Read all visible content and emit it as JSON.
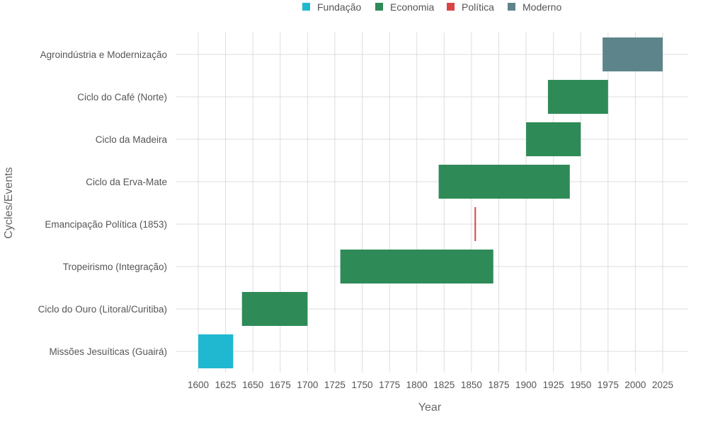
{
  "chart_data": {
    "type": "bar",
    "orientation": "horizontal-range",
    "xlabel": "Year",
    "ylabel": "Cycles/Events",
    "xlim": [
      1583,
      2050
    ],
    "xticks": [
      1600,
      1625,
      1650,
      1675,
      1700,
      1725,
      1750,
      1775,
      1800,
      1825,
      1850,
      1875,
      1900,
      1925,
      1950,
      1975,
      2000,
      2025
    ],
    "grid": true,
    "legend_position": "top",
    "legend": [
      {
        "name": "Fundação",
        "color": "#1fb8d0"
      },
      {
        "name": "Economia",
        "color": "#2e8b57"
      },
      {
        "name": "Política",
        "color": "#d94444"
      },
      {
        "name": "Moderno",
        "color": "#5e848b"
      }
    ],
    "categories": [
      "Agroindústria e Modernização",
      "Ciclo do Café (Norte)",
      "Ciclo da Madeira",
      "Ciclo da Erva-Mate",
      "Emancipação Política (1853)",
      "Tropeirismo (Integração)",
      "Ciclo do Ouro (Litoral/Curitiba)",
      "Missões Jesuíticas (Guairá)"
    ],
    "bars": [
      {
        "label": "Agroindústria e Modernização",
        "start": 1970,
        "end": 2025,
        "group": "Moderno"
      },
      {
        "label": "Ciclo do Café (Norte)",
        "start": 1920,
        "end": 1975,
        "group": "Economia"
      },
      {
        "label": "Ciclo da Madeira",
        "start": 1900,
        "end": 1950,
        "group": "Economia"
      },
      {
        "label": "Ciclo da Erva-Mate",
        "start": 1820,
        "end": 1940,
        "group": "Economia"
      },
      {
        "label": "Emancipação Política (1853)",
        "start": 1853,
        "end": 1854,
        "group": "Política"
      },
      {
        "label": "Tropeirismo (Integração)",
        "start": 1730,
        "end": 1870,
        "group": "Economia"
      },
      {
        "label": "Ciclo do Ouro (Litoral/Curitiba)",
        "start": 1640,
        "end": 1700,
        "group": "Economia"
      },
      {
        "label": "Missões Jesuíticas (Guairá)",
        "start": 1600,
        "end": 1632,
        "group": "Fundação"
      }
    ]
  }
}
